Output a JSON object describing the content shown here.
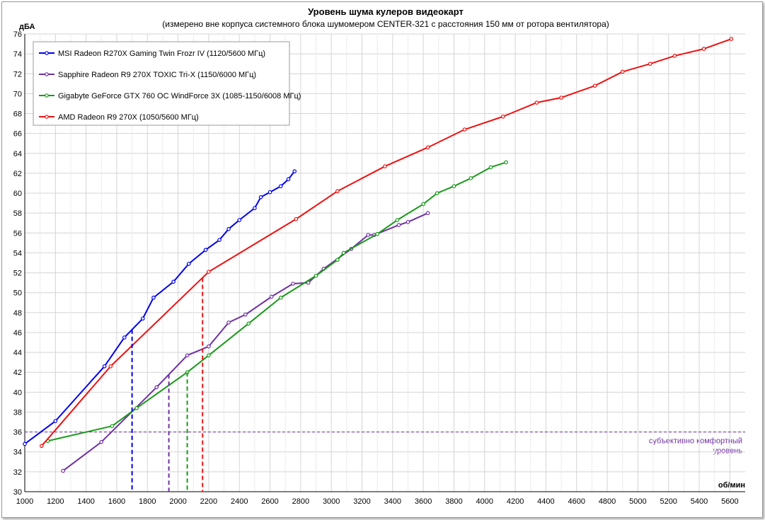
{
  "chart_data": {
    "type": "line",
    "title": "Уровень шума кулеров видеокарт",
    "subtitle": "(измерено вне корпуса системного блока шумомером CENTER-321 с расстояния 150 мм от ротора вентилятора)",
    "xlabel": "об/мин",
    "ylabel": "дБА",
    "xlim": [
      1000,
      5700
    ],
    "ylim": [
      30,
      76
    ],
    "x_ticks": [
      1000,
      1200,
      1400,
      1600,
      1800,
      2000,
      2200,
      2400,
      2600,
      2800,
      3000,
      3200,
      3400,
      3600,
      3800,
      4000,
      4200,
      4400,
      4600,
      4800,
      5000,
      5200,
      5400,
      5600
    ],
    "y_ticks": [
      30,
      32,
      34,
      36,
      38,
      40,
      42,
      44,
      46,
      48,
      50,
      52,
      54,
      56,
      58,
      60,
      62,
      64,
      66,
      68,
      70,
      72,
      74,
      76
    ],
    "grid": true,
    "legend_position": "top-left",
    "series": [
      {
        "name": "MSI Radeon R270X Gaming Twin Frozr IV (1120/5600 МГц)",
        "color": "#0000ee",
        "x": [
          1000,
          1200,
          1520,
          1650,
          1770,
          1840,
          1970,
          2070,
          2180,
          2270,
          2330,
          2400,
          2500,
          2540,
          2600,
          2670,
          2720,
          2760
        ],
        "y": [
          34.8,
          37.1,
          42.6,
          45.5,
          47.4,
          49.5,
          51.1,
          52.9,
          54.3,
          55.3,
          56.4,
          57.3,
          58.5,
          59.6,
          60.1,
          60.7,
          61.4,
          62.2
        ]
      },
      {
        "name": "Sapphire Radeon R9 270X TOXIC Tri-X (1150/6000 МГц)",
        "color": "#7030a0",
        "x": [
          1250,
          1500,
          1860,
          2060,
          2200,
          2330,
          2440,
          2610,
          2750,
          2850,
          2950,
          3130,
          3240,
          3280,
          3440,
          3500,
          3630
        ],
        "y": [
          32.1,
          35.0,
          40.5,
          43.7,
          44.6,
          47.0,
          47.8,
          49.6,
          50.9,
          51.0,
          52.4,
          54.4,
          55.8,
          55.8,
          56.8,
          57.1,
          58.0
        ]
      },
      {
        "name": "Gigabyte GeForce GTX 760 OC WindForce 3X (1085-1150/6008 МГц)",
        "color": "#1a9a1a",
        "x": [
          1150,
          1570,
          1730,
          2060,
          2200,
          2460,
          2670,
          2900,
          3040,
          3080,
          3300,
          3430,
          3600,
          3690,
          3800,
          3910,
          4040,
          4140
        ],
        "y": [
          35.1,
          36.6,
          38.4,
          42.0,
          43.7,
          46.9,
          49.5,
          51.7,
          53.3,
          54.0,
          55.9,
          57.3,
          58.9,
          60.0,
          60.7,
          61.5,
          62.6,
          63.1
        ]
      },
      {
        "name": "AMD Radeon R9 270X (1050/5600 МГц)",
        "color": "#ee1111",
        "x": [
          1110,
          1560,
          2200,
          2770,
          3040,
          3350,
          3630,
          3870,
          4120,
          4340,
          4500,
          4720,
          4900,
          5080,
          5240,
          5430,
          5610
        ],
        "y": [
          34.6,
          42.6,
          52.1,
          57.4,
          60.2,
          62.7,
          64.6,
          66.4,
          67.7,
          69.1,
          69.6,
          70.8,
          72.2,
          73.0,
          73.8,
          74.5,
          75.5
        ]
      }
    ],
    "reference_lines": [
      {
        "x": 1700,
        "color": "#0000ee"
      },
      {
        "x": 1940,
        "color": "#7030a0"
      },
      {
        "x": 2060,
        "color": "#1a9a1a"
      },
      {
        "x": 2160,
        "color": "#ee1111"
      }
    ],
    "comfort_line": {
      "y": 36,
      "color": "#7030a0",
      "label_line1": "субъективно комфортный",
      "label_line2": "уровень"
    }
  }
}
